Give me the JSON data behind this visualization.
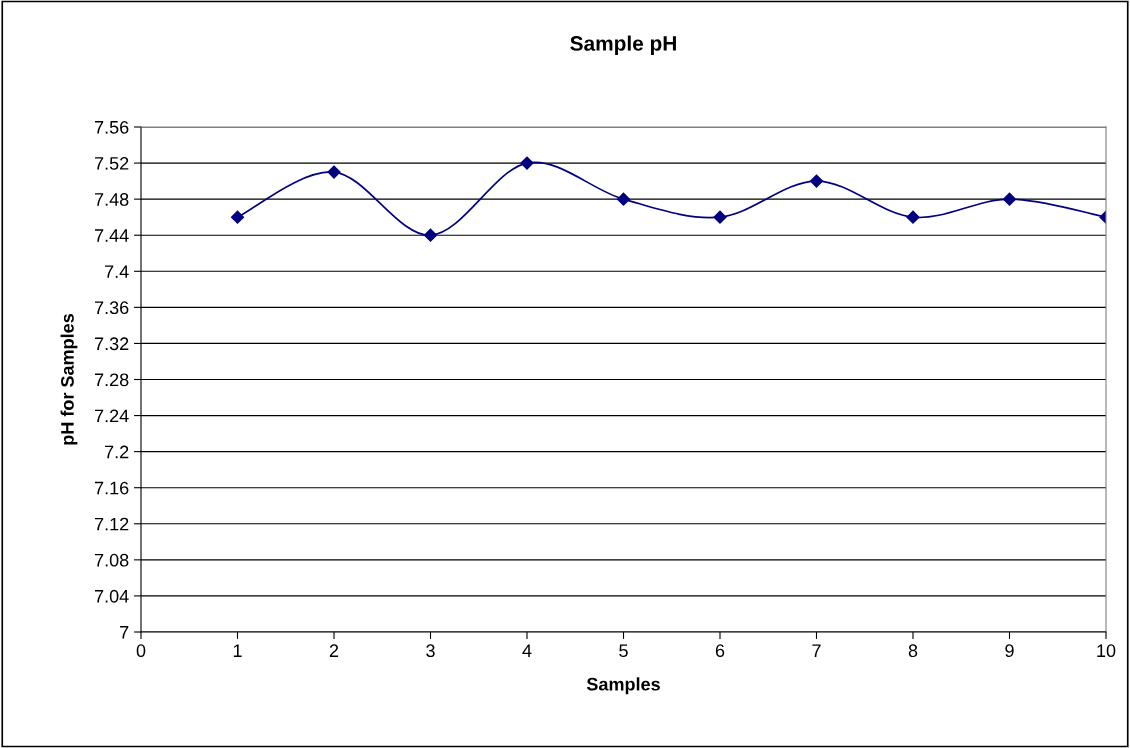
{
  "chart_data": {
    "type": "line",
    "title": "Sample pH",
    "xlabel": "Samples",
    "ylabel": "pH for Samples",
    "x": [
      1,
      2,
      3,
      4,
      5,
      6,
      7,
      8,
      9,
      10
    ],
    "series": [
      {
        "color": "#000080",
        "values": [
          7.46,
          7.51,
          7.44,
          7.52,
          7.48,
          7.46,
          7.5,
          7.46,
          7.48,
          7.46
        ]
      }
    ],
    "xlim": [
      0,
      10
    ],
    "xticks": [
      0,
      1,
      2,
      3,
      4,
      5,
      6,
      7,
      8,
      9,
      10
    ],
    "ylim": [
      7,
      7.56
    ],
    "yticks": [
      7,
      7.04,
      7.08,
      7.12,
      7.16,
      7.2,
      7.24,
      7.28,
      7.32,
      7.36,
      7.4,
      7.44,
      7.48,
      7.52,
      7.56
    ],
    "grid": "y",
    "marker": "diamond",
    "line_style": "solid"
  }
}
